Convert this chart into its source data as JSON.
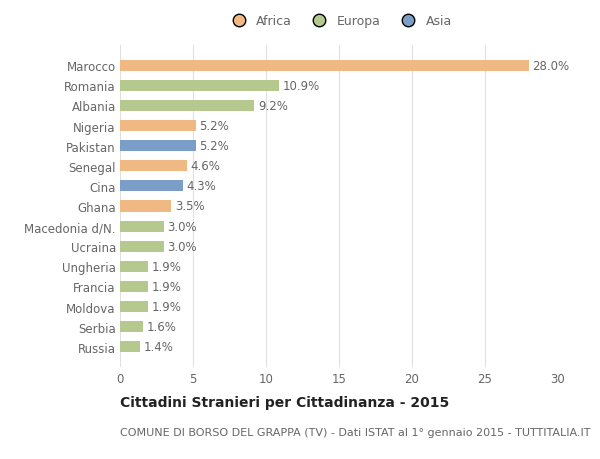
{
  "categories": [
    "Marocco",
    "Romania",
    "Albania",
    "Nigeria",
    "Pakistan",
    "Senegal",
    "Cina",
    "Ghana",
    "Macedonia d/N.",
    "Ucraina",
    "Ungheria",
    "Francia",
    "Moldova",
    "Serbia",
    "Russia"
  ],
  "values": [
    28.0,
    10.9,
    9.2,
    5.2,
    5.2,
    4.6,
    4.3,
    3.5,
    3.0,
    3.0,
    1.9,
    1.9,
    1.9,
    1.6,
    1.4
  ],
  "continents": [
    "Africa",
    "Europa",
    "Europa",
    "Africa",
    "Asia",
    "Africa",
    "Asia",
    "Africa",
    "Europa",
    "Europa",
    "Europa",
    "Europa",
    "Europa",
    "Europa",
    "Europa"
  ],
  "colors": {
    "Africa": "#F0B882",
    "Europa": "#B5C98E",
    "Asia": "#7B9EC8"
  },
  "legend_labels": [
    "Africa",
    "Europa",
    "Asia"
  ],
  "title": "Cittadini Stranieri per Cittadinanza - 2015",
  "subtitle": "COMUNE DI BORSO DEL GRAPPA (TV) - Dati ISTAT al 1° gennaio 2015 - TUTTITALIA.IT",
  "xlim": [
    0,
    30
  ],
  "xticks": [
    0,
    5,
    10,
    15,
    20,
    25,
    30
  ],
  "background_color": "#ffffff",
  "grid_color": "#e0e0e0",
  "bar_height": 0.55,
  "title_fontsize": 10,
  "subtitle_fontsize": 8,
  "legend_fontsize": 9,
  "tick_fontsize": 8.5,
  "value_fontsize": 8.5,
  "value_color": "#666666",
  "tick_color": "#666666"
}
